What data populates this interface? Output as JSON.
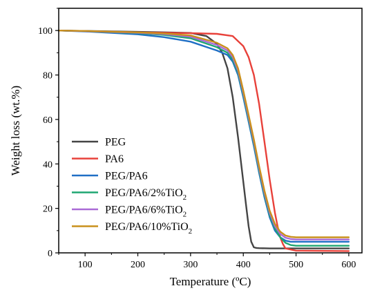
{
  "chart_data": {
    "type": "line",
    "xlabel": "Temperature (ºC)",
    "ylabel": "Weight loss (wt.%)",
    "xlim": [
      50,
      625
    ],
    "ylim": [
      0,
      110
    ],
    "x_ticks": [
      100,
      200,
      300,
      400,
      500,
      600
    ],
    "y_ticks": [
      0,
      20,
      40,
      60,
      80,
      100
    ],
    "grid": false,
    "legend_position": "bottom-left",
    "series": [
      {
        "name": "PEG",
        "legend": {
          "base": "PEG",
          "sub": ""
        },
        "color": "#444444",
        "x": [
          50,
          100,
          200,
          250,
          300,
          330,
          350,
          360,
          370,
          380,
          390,
          400,
          405,
          410,
          415,
          420,
          425,
          430,
          450,
          500,
          600
        ],
        "y": [
          100,
          99.8,
          99.4,
          99.2,
          98.9,
          97.5,
          94,
          90,
          83,
          70,
          52,
          32,
          22,
          12,
          5,
          2.5,
          2.2,
          2.1,
          2.0,
          2.0,
          2.0
        ]
      },
      {
        "name": "PA6",
        "legend": {
          "base": "PA6",
          "sub": ""
        },
        "color": "#e8413a",
        "x": [
          50,
          100,
          200,
          250,
          300,
          350,
          380,
          400,
          410,
          420,
          430,
          440,
          450,
          460,
          465,
          470,
          475,
          480,
          500,
          600
        ],
        "y": [
          100,
          99.7,
          99.2,
          99.0,
          98.8,
          98.5,
          97.5,
          93,
          88,
          80,
          67,
          50,
          33,
          18,
          12,
          7,
          4,
          2,
          1.0,
          0.8
        ]
      },
      {
        "name": "PEG/PA6",
        "legend": {
          "base": "PEG/PA6",
          "sub": ""
        },
        "color": "#1f6fc5",
        "x": [
          50,
          100,
          200,
          250,
          300,
          350,
          370,
          380,
          390,
          400,
          410,
          420,
          430,
          440,
          450,
          460,
          470,
          480,
          490,
          500,
          600
        ],
        "y": [
          100,
          99.6,
          98.3,
          97,
          95,
          91,
          89,
          86,
          80,
          70,
          59,
          48,
          36,
          25,
          16,
          10,
          7,
          5.5,
          5,
          5,
          5
        ]
      },
      {
        "name": "PEG/PA6/2%TiO2",
        "legend": {
          "base": "PEG/PA6/2%TiO",
          "sub": "2"
        },
        "color": "#1ea672",
        "x": [
          50,
          100,
          200,
          250,
          300,
          350,
          370,
          380,
          390,
          400,
          410,
          420,
          430,
          440,
          450,
          460,
          470,
          480,
          490,
          500,
          600
        ],
        "y": [
          100,
          99.7,
          98.8,
          98,
          96.5,
          92.5,
          90,
          87,
          81,
          71,
          60,
          49,
          37,
          26,
          17,
          11,
          7,
          4.5,
          3.5,
          3.2,
          3.2
        ]
      },
      {
        "name": "PEG/PA6/6%TiO2",
        "legend": {
          "base": "PEG/PA6/6%TiO",
          "sub": "2"
        },
        "color": "#a96ad6",
        "x": [
          50,
          100,
          200,
          250,
          300,
          350,
          370,
          380,
          390,
          400,
          410,
          420,
          430,
          440,
          450,
          460,
          470,
          480,
          490,
          500,
          600
        ],
        "y": [
          100,
          99.7,
          99,
          98.4,
          97.2,
          93.5,
          91,
          88,
          82,
          72,
          61,
          50,
          38,
          27,
          18,
          12,
          8.5,
          6.8,
          6.2,
          6.0,
          6.0
        ]
      },
      {
        "name": "PEG/PA6/10%TiO2",
        "legend": {
          "base": "PEG/PA6/10%TiO",
          "sub": "2"
        },
        "color": "#c9901c",
        "x": [
          50,
          100,
          200,
          250,
          300,
          350,
          370,
          380,
          390,
          400,
          410,
          420,
          430,
          440,
          450,
          460,
          470,
          480,
          490,
          500,
          600
        ],
        "y": [
          100,
          99.8,
          99.2,
          98.7,
          97.8,
          94.5,
          92,
          89,
          83,
          73,
          62,
          51,
          39,
          28,
          19,
          13,
          9.5,
          7.8,
          7.2,
          7.0,
          7.0
        ]
      }
    ]
  }
}
